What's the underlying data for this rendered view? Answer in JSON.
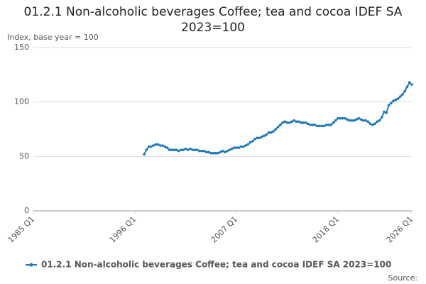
{
  "chart_data": {
    "type": "line",
    "title": "01.2.1 Non-alcoholic beverages Coffee; tea and cocoa IDEF SA 2023=100",
    "y_label": "Index, base year = 100",
    "source": "Source:",
    "categories": [
      "1985 Q1",
      null,
      null,
      null,
      null,
      null,
      null,
      null,
      null,
      null,
      null,
      null,
      null,
      null,
      null,
      null,
      null,
      null,
      null,
      null,
      null,
      null,
      null,
      null,
      null,
      null,
      null,
      null,
      null,
      null,
      null,
      null,
      null,
      null,
      null,
      null,
      null,
      null,
      null,
      null,
      null,
      null,
      null,
      null,
      "1996 Q1",
      null,
      null,
      null,
      null,
      null,
      null,
      null,
      null,
      null,
      null,
      null,
      null,
      null,
      null,
      null,
      null,
      null,
      null,
      null,
      null,
      null,
      null,
      null,
      null,
      null,
      null,
      null,
      null,
      null,
      null,
      null,
      null,
      null,
      null,
      null,
      null,
      null,
      null,
      null,
      null,
      null,
      null,
      null,
      "2007 Q1",
      null,
      null,
      null,
      null,
      null,
      null,
      null,
      null,
      null,
      null,
      null,
      null,
      null,
      null,
      null,
      null,
      null,
      null,
      null,
      null,
      null,
      null,
      null,
      null,
      null,
      null,
      null,
      null,
      null,
      null,
      null,
      null,
      null,
      null,
      null,
      null,
      null,
      null,
      null,
      null,
      null,
      null,
      null,
      "2018 Q1",
      null,
      null,
      null,
      null,
      null,
      null,
      null,
      null,
      null,
      null,
      null,
      null,
      null,
      null,
      null,
      null,
      null,
      null,
      null,
      null,
      null,
      null,
      null,
      null,
      null,
      null,
      null,
      null,
      null,
      null,
      null,
      "2026 Q1"
    ],
    "series": [
      {
        "name": "01.2.1 Non-alcoholic beverages Coffee; tea and cocoa IDEF SA 2023=100",
        "color": "#1f77b4",
        "values": [
          null,
          null,
          null,
          null,
          null,
          null,
          null,
          null,
          null,
          null,
          null,
          null,
          null,
          null,
          null,
          null,
          null,
          null,
          null,
          null,
          null,
          null,
          null,
          null,
          null,
          null,
          null,
          null,
          null,
          null,
          null,
          null,
          null,
          null,
          null,
          null,
          null,
          null,
          null,
          null,
          null,
          null,
          null,
          null,
          null,
          null,
          null,
          null,
          52,
          56,
          59,
          59,
          60,
          61,
          61,
          60,
          60,
          59,
          58,
          56,
          56,
          56,
          56,
          55,
          56,
          56,
          57,
          56,
          57,
          56,
          56,
          56,
          55,
          55,
          55,
          54,
          54,
          53,
          53,
          53,
          53,
          54,
          55,
          54,
          55,
          56,
          57,
          58,
          58,
          58,
          59,
          59,
          60,
          61,
          63,
          64,
          66,
          67,
          67,
          68,
          69,
          70,
          72,
          72,
          73,
          75,
          77,
          79,
          81,
          82,
          81,
          81,
          82,
          83,
          82,
          82,
          81,
          81,
          81,
          80,
          79,
          79,
          79,
          78,
          78,
          78,
          78,
          79,
          79,
          79,
          81,
          83,
          85,
          85,
          85,
          85,
          84,
          83,
          83,
          83,
          84,
          85,
          84,
          83,
          83,
          82,
          80,
          79,
          80,
          82,
          83,
          86,
          91,
          90,
          97,
          99,
          101,
          102,
          103,
          105,
          107,
          110,
          114,
          118,
          116
        ]
      }
    ],
    "ylim": [
      0,
      150
    ],
    "yticks": [
      0,
      50,
      100,
      150
    ],
    "grid": true
  }
}
